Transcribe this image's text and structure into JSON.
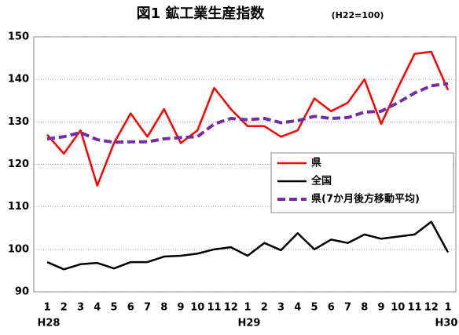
{
  "chart_data": {
    "type": "line",
    "title": "図1 鉱工業生産指数",
    "subtitle": "(H22=100)",
    "categories": [
      "1",
      "2",
      "3",
      "4",
      "5",
      "6",
      "7",
      "8",
      "9",
      "10",
      "11",
      "12",
      "1",
      "2",
      "3",
      "4",
      "5",
      "6",
      "7",
      "8",
      "9",
      "10",
      "11",
      "12",
      "1"
    ],
    "category_groups": [
      "H28",
      null,
      null,
      null,
      null,
      null,
      null,
      null,
      null,
      null,
      null,
      null,
      "H29",
      null,
      null,
      null,
      null,
      null,
      null,
      null,
      null,
      null,
      null,
      null,
      "H30"
    ],
    "series": [
      {
        "name": "県",
        "color": "#ff0000",
        "dash": false,
        "values": [
          127,
          122.5,
          128,
          115,
          125,
          132,
          126.5,
          133,
          125,
          128,
          138,
          133,
          129,
          129,
          126.5,
          128,
          135.5,
          132.5,
          134.5,
          140,
          129.5,
          138,
          146,
          146.5,
          137.5
        ]
      },
      {
        "name": "全国",
        "color": "#000000",
        "dash": false,
        "values": [
          97,
          95.3,
          96.5,
          96.8,
          95.5,
          97,
          97,
          98.3,
          98.5,
          99,
          100,
          100.5,
          98.5,
          101.5,
          99.8,
          103.8,
          100,
          102.3,
          101.5,
          103.5,
          102.5,
          103,
          103.5,
          106.5,
          99.3
        ]
      },
      {
        "name": "県(7か月後方移動平均)",
        "color": "#7030a0",
        "dash": true,
        "values": [
          126,
          126.5,
          127.5,
          125.8,
          125.2,
          125.3,
          125.3,
          126,
          126.3,
          126.5,
          129.5,
          130.8,
          130.5,
          130.8,
          129.8,
          130.3,
          131.3,
          130.8,
          131,
          132.3,
          132.5,
          134.5,
          136.8,
          138.5,
          139
        ]
      }
    ],
    "ylim": [
      90,
      150
    ],
    "yticks": [
      90,
      100,
      110,
      120,
      130,
      140,
      150
    ],
    "grid": true,
    "legend": "right"
  }
}
